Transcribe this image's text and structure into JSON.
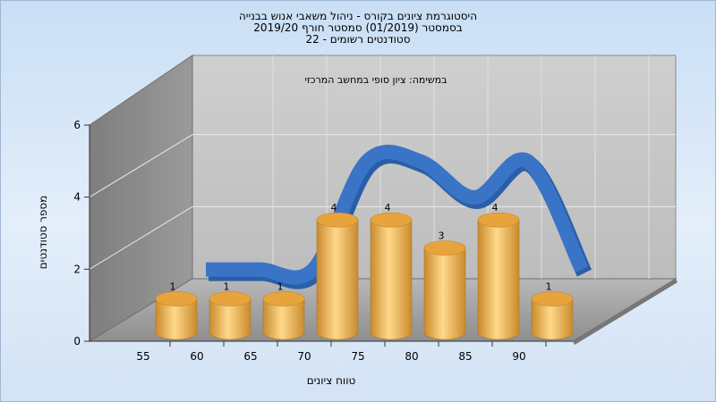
{
  "title": {
    "line1": "היסטוגרמת ציונים בקורס - ניהול משאבי אנוש בבנייה",
    "line2": "בסמסטר (01/2019) סמסטר חורף 2019/20",
    "line3": "סטודנטים רשומים - 22"
  },
  "chart_data": {
    "type": "bar",
    "subtitle": "במשימה: ציון סופי במחשב המרכזי",
    "categories": [
      "55",
      "60",
      "65",
      "70",
      "75",
      "80",
      "85",
      "90"
    ],
    "values": [
      1,
      1,
      1,
      4,
      4,
      3,
      4,
      1
    ],
    "xlabel": "טווח ציונים",
    "ylabel": "מספר סטודנטים",
    "ylim": [
      0,
      6
    ],
    "yticks": [
      "0",
      "2",
      "4",
      "6"
    ],
    "grid": true,
    "three_d": true,
    "trend_line": true,
    "colors": {
      "bar_light": "#ffd98a",
      "bar_dark": "#c98a2c",
      "bar_top": "#e8a43c",
      "trend": "#3a74c6",
      "wall_back": "#c4c4c4",
      "wall_left": "#8c8c8c",
      "floor": "#a6a6a6"
    }
  }
}
